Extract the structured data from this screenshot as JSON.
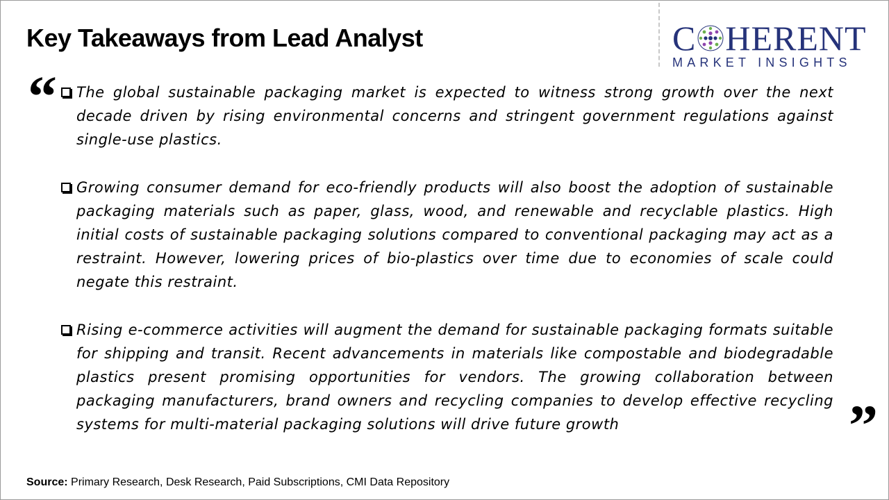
{
  "slide": {
    "title": "Key Takeaways from Lead Analyst"
  },
  "logo": {
    "word_left": "C",
    "word_right": "HERENT",
    "subtitle": "MARKET INSIGHTS",
    "colors": {
      "navy": "#26337a",
      "green": "#6ab04c",
      "purple": "#8e44ad"
    }
  },
  "quotes": {
    "open": "“",
    "close": "”"
  },
  "points": [
    "The global sustainable packaging market is expected to witness strong growth over the next decade driven by rising environmental concerns and stringent government regulations against single-use plastics.",
    "Growing consumer demand for eco-friendly products will also boost the adoption of sustainable packaging materials such as paper, glass, wood, and renewable and recyclable plastics. High initial costs of sustainable packaging solutions compared to conventional packaging may act as a restraint. However, lowering prices of bio-plastics over time due to economies of scale could negate this restraint.",
    "Rising e-commerce activities will augment the demand for sustainable packaging formats suitable for shipping and transit. Recent advancements in materials like compostable and biodegradable plastics present promising opportunities for vendors. The growing collaboration between packaging manufacturers, brand owners and recycling companies to develop effective recycling systems for multi-material packaging solutions will drive future growth"
  ],
  "source": {
    "label": "Source:",
    "text": " Primary Research, Desk Research, Paid Subscriptions, CMI Data Repository"
  }
}
